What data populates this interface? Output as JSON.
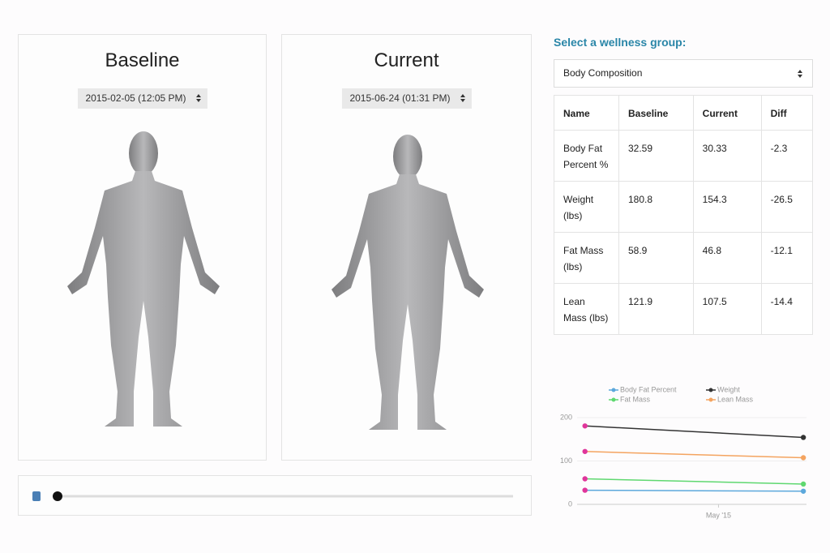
{
  "panels": [
    {
      "title": "Baseline",
      "date": "2015-02-05 (12:05 PM)"
    },
    {
      "title": "Current",
      "date": "2015-06-24 (01:31 PM)"
    }
  ],
  "group_label": "Select a wellness group:",
  "group_select": "Body Composition",
  "table": {
    "columns": [
      "Name",
      "Baseline",
      "Current",
      "Diff"
    ],
    "rows": [
      [
        "Body Fat Percent %",
        "32.59",
        "30.33",
        "-2.3"
      ],
      [
        "Weight (lbs)",
        "180.8",
        "154.3",
        "-26.5"
      ],
      [
        "Fat Mass (lbs)",
        "58.9",
        "46.8",
        "-12.1"
      ],
      [
        "Lean Mass (lbs)",
        "121.9",
        "107.5",
        "-14.4"
      ]
    ]
  },
  "chart_data": {
    "type": "line",
    "x": [
      "2015-02-05",
      "2015-06-24"
    ],
    "xlim": [
      "2015-01-31",
      "2015-06-26"
    ],
    "xticks": [
      {
        "value": "2015-05-01",
        "label": "May '15"
      }
    ],
    "ylim": [
      0,
      215
    ],
    "yticks": [
      0,
      100,
      200
    ],
    "grid": true,
    "marker_color": "#e0359b",
    "series": [
      {
        "name": "Body Fat Percent",
        "color": "#5ca8dc",
        "values": [
          32.59,
          30.33
        ]
      },
      {
        "name": "Weight",
        "color": "#333333",
        "values": [
          180.8,
          154.3
        ]
      },
      {
        "name": "Fat Mass",
        "color": "#5fd870",
        "values": [
          58.9,
          46.8
        ]
      },
      {
        "name": "Lean Mass",
        "color": "#f4a460",
        "values": [
          121.9,
          107.5
        ]
      }
    ]
  }
}
